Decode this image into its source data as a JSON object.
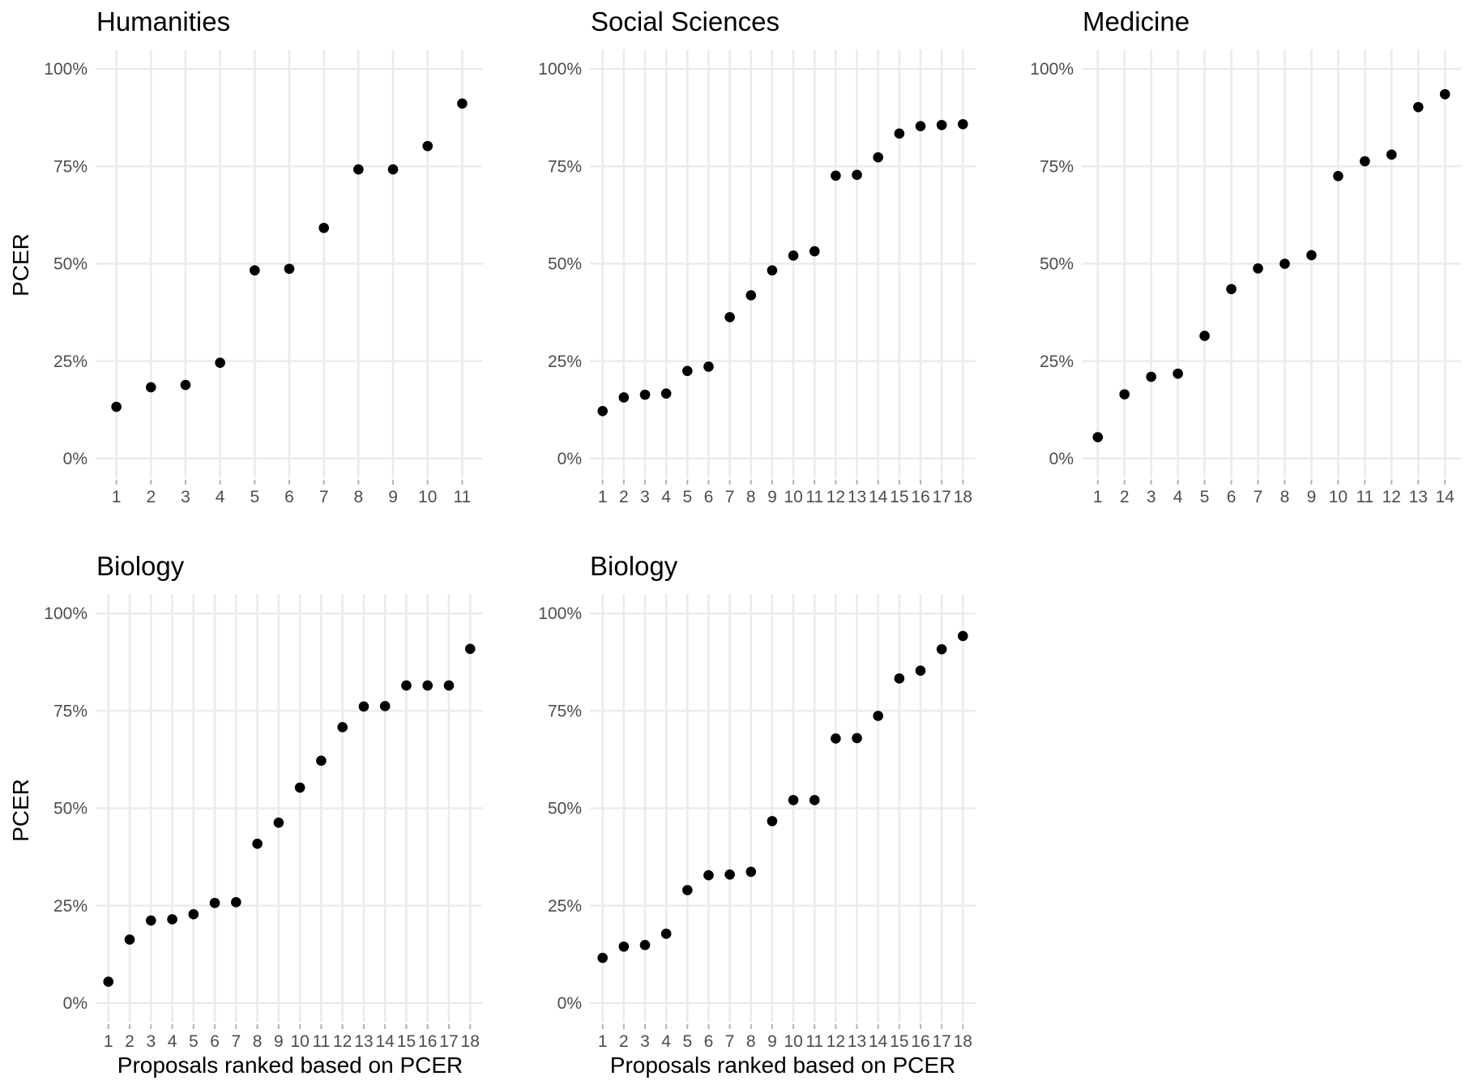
{
  "figure": {
    "y_axis_title": "PCER",
    "x_axis_title": "Proposals ranked based on PCER"
  },
  "chart_data": [
    {
      "type": "scatter",
      "title": "Humanities",
      "ylim": [
        0,
        1
      ],
      "y_ticks": [
        0,
        0.25,
        0.5,
        0.75,
        1
      ],
      "y_tick_labels": [
        "0%",
        "25%",
        "50%",
        "75%",
        "100%"
      ],
      "x": [
        1,
        2,
        3,
        4,
        5,
        6,
        7,
        8,
        9,
        10,
        11
      ],
      "y": [
        0.133,
        0.183,
        0.189,
        0.246,
        0.483,
        0.487,
        0.592,
        0.742,
        0.742,
        0.802,
        0.911
      ]
    },
    {
      "type": "scatter",
      "title": "Social Sciences",
      "ylim": [
        0,
        1
      ],
      "y_ticks": [
        0,
        0.25,
        0.5,
        0.75,
        1
      ],
      "y_tick_labels": [
        "0%",
        "25%",
        "50%",
        "75%",
        "100%"
      ],
      "x": [
        1,
        2,
        3,
        4,
        5,
        6,
        7,
        8,
        9,
        10,
        11,
        12,
        13,
        14,
        15,
        16,
        17,
        18
      ],
      "y": [
        0.122,
        0.157,
        0.164,
        0.167,
        0.225,
        0.236,
        0.363,
        0.419,
        0.483,
        0.521,
        0.532,
        0.726,
        0.728,
        0.773,
        0.834,
        0.853,
        0.856,
        0.858
      ]
    },
    {
      "type": "scatter",
      "title": "Medicine",
      "ylim": [
        0,
        1
      ],
      "y_ticks": [
        0,
        0.25,
        0.5,
        0.75,
        1
      ],
      "y_tick_labels": [
        "0%",
        "25%",
        "50%",
        "75%",
        "100%"
      ],
      "x": [
        1,
        2,
        3,
        4,
        5,
        6,
        7,
        8,
        9,
        10,
        11,
        12,
        13,
        14
      ],
      "y": [
        0.055,
        0.165,
        0.21,
        0.218,
        0.315,
        0.435,
        0.488,
        0.5,
        0.522,
        0.725,
        0.763,
        0.78,
        0.902,
        0.935
      ]
    },
    {
      "type": "scatter",
      "title": "Biology",
      "ylim": [
        0,
        1
      ],
      "y_ticks": [
        0,
        0.25,
        0.5,
        0.75,
        1
      ],
      "y_tick_labels": [
        "0%",
        "25%",
        "50%",
        "75%",
        "100%"
      ],
      "x": [
        1,
        2,
        3,
        4,
        5,
        6,
        7,
        8,
        9,
        10,
        11,
        12,
        13,
        14,
        15,
        16,
        17,
        18
      ],
      "y": [
        0.055,
        0.163,
        0.212,
        0.215,
        0.228,
        0.257,
        0.259,
        0.409,
        0.463,
        0.553,
        0.622,
        0.708,
        0.761,
        0.762,
        0.815,
        0.815,
        0.815,
        0.909
      ]
    },
    {
      "type": "scatter",
      "title": "Biology",
      "ylim": [
        0,
        1
      ],
      "y_ticks": [
        0,
        0.25,
        0.5,
        0.75,
        1
      ],
      "y_tick_labels": [
        "0%",
        "25%",
        "50%",
        "75%",
        "100%"
      ],
      "x": [
        1,
        2,
        3,
        4,
        5,
        6,
        7,
        8,
        9,
        10,
        11,
        12,
        13,
        14,
        15,
        16,
        17,
        18
      ],
      "y": [
        0.116,
        0.145,
        0.149,
        0.178,
        0.29,
        0.328,
        0.33,
        0.337,
        0.467,
        0.521,
        0.521,
        0.679,
        0.68,
        0.737,
        0.833,
        0.853,
        0.908,
        0.942
      ]
    }
  ]
}
